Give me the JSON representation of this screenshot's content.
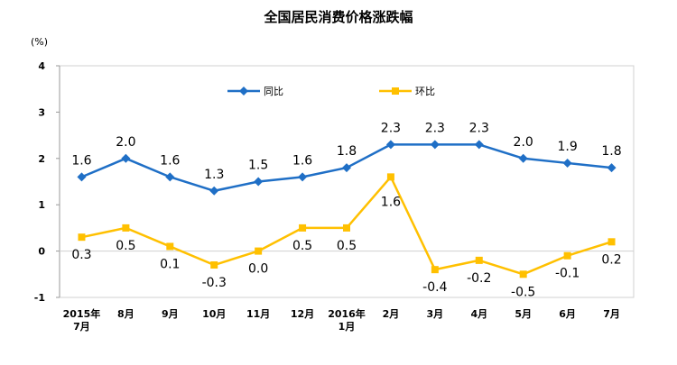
{
  "chart_data": {
    "type": "line",
    "title": "全国居民消费价格涨跌幅",
    "unit": "(%)",
    "ylim": [
      -1,
      4
    ],
    "yticks": [
      "4",
      "3",
      "2",
      "1",
      "0",
      "-1"
    ],
    "categories": [
      "2015年\n7月",
      "8月",
      "9月",
      "10月",
      "11月",
      "12月",
      "2016年\n1月",
      "2月",
      "3月",
      "4月",
      "5月",
      "6月",
      "7月"
    ],
    "grid": false,
    "legend_position": "top-center",
    "series": [
      {
        "name": "同比",
        "color": "#1F6FC6",
        "marker": "diamond",
        "values": [
          1.6,
          2.0,
          1.6,
          1.3,
          1.5,
          1.6,
          1.8,
          2.3,
          2.3,
          2.3,
          2.0,
          1.9,
          1.8
        ],
        "labels": [
          "1.6",
          "2.0",
          "1.6",
          "1.3",
          "1.5",
          "1.6",
          "1.8",
          "2.3",
          "2.3",
          "2.3",
          "2.0",
          "1.9",
          "1.8"
        ]
      },
      {
        "name": "环比",
        "color": "#FFC000",
        "marker": "square",
        "values": [
          0.3,
          0.5,
          0.1,
          -0.3,
          0.0,
          0.5,
          0.5,
          1.6,
          -0.4,
          -0.2,
          -0.5,
          -0.1,
          0.2
        ],
        "labels": [
          "0.3",
          "0.5",
          "0.1",
          "-0.3",
          "0.0",
          "0.5",
          "0.5",
          "1.6",
          "-0.4",
          "-0.2",
          "-0.5",
          "-0.1",
          "0.2"
        ]
      }
    ]
  }
}
